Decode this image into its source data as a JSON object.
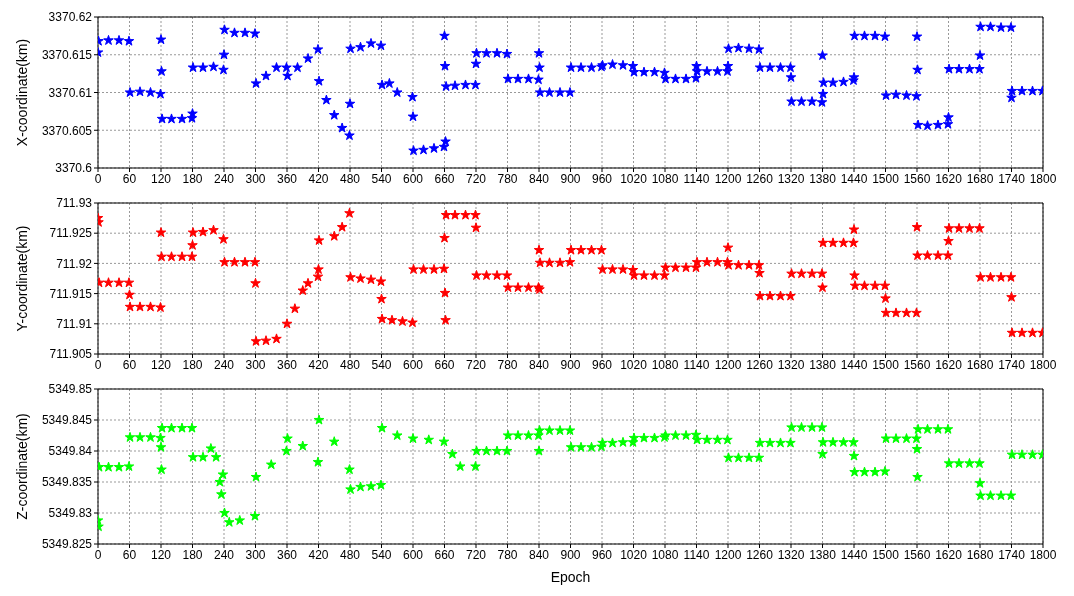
{
  "chart_data": [
    {
      "type": "scatter",
      "ylabel": "X-coordinate(km)",
      "color": "#0000ff",
      "marker": "star",
      "grid": true,
      "xlim": [
        0,
        1800
      ],
      "xticks": [
        0,
        60,
        120,
        180,
        240,
        300,
        360,
        420,
        480,
        540,
        600,
        660,
        720,
        780,
        840,
        900,
        960,
        1020,
        1080,
        1140,
        1200,
        1260,
        1320,
        1380,
        1440,
        1500,
        1560,
        1620,
        1680,
        1740,
        1800
      ],
      "ylim": [
        3370.6,
        3370.62
      ],
      "yticks": [
        3370.6,
        3370.605,
        3370.61,
        3370.615,
        3370.62
      ],
      "x": [
        0,
        1,
        20,
        40,
        59,
        61,
        80,
        100,
        119,
        120,
        121,
        122,
        140,
        160,
        179,
        180,
        181,
        200,
        220,
        239,
        240,
        241,
        260,
        280,
        299,
        301,
        320,
        340,
        359,
        361,
        380,
        400,
        419,
        421,
        435,
        450,
        465,
        479,
        480,
        481,
        500,
        520,
        539,
        541,
        555,
        570,
        599,
        600,
        601,
        620,
        640,
        659,
        660,
        661,
        662,
        663,
        680,
        700,
        719,
        720,
        721,
        740,
        760,
        779,
        781,
        800,
        820,
        839,
        840,
        841,
        842,
        860,
        880,
        899,
        901,
        920,
        940,
        959,
        961,
        980,
        1000,
        1019,
        1021,
        1040,
        1060,
        1079,
        1081,
        1100,
        1120,
        1139,
        1140,
        1141,
        1160,
        1180,
        1199,
        1200,
        1201,
        1220,
        1240,
        1259,
        1261,
        1280,
        1300,
        1319,
        1320,
        1321,
        1340,
        1360,
        1379,
        1380,
        1381,
        1382,
        1400,
        1420,
        1439,
        1440,
        1441,
        1460,
        1480,
        1499,
        1501,
        1520,
        1540,
        1559,
        1560,
        1561,
        1562,
        1580,
        1600,
        1619,
        1620,
        1621,
        1640,
        1660,
        1679,
        1680,
        1681,
        1700,
        1720,
        1739,
        1740,
        1741,
        1760,
        1780,
        1799
      ],
      "values": [
        3370.6153,
        3370.6168,
        3370.6169,
        3370.6169,
        3370.6168,
        3370.61,
        3370.6101,
        3370.61,
        3370.6098,
        3370.617,
        3370.6128,
        3370.6065,
        3370.6065,
        3370.6065,
        3370.6066,
        3370.6072,
        3370.6133,
        3370.6133,
        3370.6134,
        3370.613,
        3370.615,
        3370.6183,
        3370.6179,
        3370.6179,
        3370.6178,
        3370.6112,
        3370.6122,
        3370.6133,
        3370.6133,
        3370.6122,
        3370.6133,
        3370.6145,
        3370.6157,
        3370.6115,
        3370.609,
        3370.607,
        3370.6053,
        3370.6043,
        3370.6085,
        3370.6158,
        3370.616,
        3370.6165,
        3370.6162,
        3370.611,
        3370.6112,
        3370.61,
        3370.6094,
        3370.6068,
        3370.6023,
        3370.6024,
        3370.6026,
        3370.6028,
        3370.6175,
        3370.6135,
        3370.6035,
        3370.6108,
        3370.6109,
        3370.611,
        3370.611,
        3370.6138,
        3370.6152,
        3370.6152,
        3370.6152,
        3370.6151,
        3370.6118,
        3370.6118,
        3370.6118,
        3370.6117,
        3370.6152,
        3370.6133,
        3370.61,
        3370.61,
        3370.61,
        3370.61,
        3370.6133,
        3370.6133,
        3370.6133,
        3370.6134,
        3370.6136,
        3370.6137,
        3370.6136,
        3370.6135,
        3370.6127,
        3370.6127,
        3370.6127,
        3370.6126,
        3370.6118,
        3370.6118,
        3370.6118,
        3370.6119,
        3370.6135,
        3370.6128,
        3370.6128,
        3370.6128,
        3370.6128,
        3370.6135,
        3370.6158,
        3370.6159,
        3370.6158,
        3370.6157,
        3370.6133,
        3370.6133,
        3370.6133,
        3370.6133,
        3370.612,
        3370.6088,
        3370.6088,
        3370.6088,
        3370.6087,
        3370.6149,
        3370.6098,
        3370.6113,
        3370.6113,
        3370.6114,
        3370.6116,
        3370.612,
        3370.6175,
        3370.6175,
        3370.6175,
        3370.6174,
        3370.6096,
        3370.6097,
        3370.6096,
        3370.6095,
        3370.6174,
        3370.613,
        3370.6057,
        3370.6056,
        3370.6057,
        3370.6058,
        3370.6067,
        3370.6131,
        3370.6131,
        3370.6131,
        3370.6131,
        3370.6149,
        3370.6187,
        3370.6187,
        3370.6186,
        3370.6186,
        3370.6093,
        3370.6102,
        3370.6102,
        3370.6102,
        3370.6102
      ]
    },
    {
      "type": "scatter",
      "ylabel": "Y-coordinate(km)",
      "color": "#ff0000",
      "marker": "star",
      "grid": true,
      "xlim": [
        0,
        1800
      ],
      "xticks": [
        0,
        60,
        120,
        180,
        240,
        300,
        360,
        420,
        480,
        540,
        600,
        660,
        720,
        780,
        840,
        900,
        960,
        1020,
        1080,
        1140,
        1200,
        1260,
        1320,
        1380,
        1440,
        1500,
        1560,
        1620,
        1680,
        1740,
        1800
      ],
      "ylim": [
        711.905,
        711.93
      ],
      "yticks": [
        711.905,
        711.91,
        711.915,
        711.92,
        711.925,
        711.93
      ],
      "x": [
        0,
        1,
        2,
        20,
        40,
        59,
        60,
        61,
        80,
        100,
        119,
        120,
        121,
        140,
        160,
        179,
        180,
        181,
        200,
        220,
        239,
        241,
        260,
        280,
        299,
        300,
        301,
        320,
        340,
        360,
        375,
        390,
        400,
        419,
        420,
        421,
        450,
        465,
        479,
        481,
        500,
        520,
        539,
        540,
        541,
        560,
        580,
        599,
        601,
        620,
        640,
        659,
        660,
        661,
        662,
        663,
        680,
        700,
        719,
        720,
        721,
        740,
        760,
        779,
        781,
        800,
        820,
        839,
        840,
        841,
        842,
        860,
        880,
        899,
        901,
        920,
        940,
        959,
        961,
        980,
        1000,
        1019,
        1021,
        1040,
        1060,
        1079,
        1081,
        1100,
        1120,
        1139,
        1141,
        1160,
        1180,
        1199,
        1200,
        1201,
        1220,
        1240,
        1259,
        1260,
        1261,
        1280,
        1300,
        1319,
        1321,
        1340,
        1360,
        1379,
        1380,
        1381,
        1400,
        1420,
        1439,
        1440,
        1441,
        1442,
        1460,
        1480,
        1499,
        1500,
        1501,
        1520,
        1540,
        1559,
        1560,
        1561,
        1580,
        1600,
        1619,
        1620,
        1621,
        1640,
        1660,
        1679,
        1681,
        1700,
        1720,
        1739,
        1740,
        1741,
        1760,
        1780,
        1799
      ],
      "values": [
        711.9275,
        711.9268,
        711.9168,
        711.9168,
        711.9168,
        711.9168,
        711.9148,
        711.9128,
        711.9128,
        711.9128,
        711.9127,
        711.9251,
        711.9211,
        711.9211,
        711.9211,
        711.9211,
        711.923,
        711.9251,
        711.9252,
        711.9255,
        711.924,
        711.9202,
        711.9202,
        711.9202,
        711.9202,
        711.9167,
        711.9071,
        711.9072,
        711.9075,
        711.91,
        711.9125,
        711.9155,
        711.9167,
        711.9178,
        711.919,
        711.9238,
        711.9245,
        711.926,
        711.9283,
        711.9177,
        711.9175,
        711.9173,
        711.917,
        711.9141,
        711.9108,
        711.9106,
        711.9104,
        711.9102,
        711.919,
        711.919,
        711.919,
        711.9191,
        711.9242,
        711.9151,
        711.9106,
        711.928,
        711.928,
        711.928,
        711.928,
        711.9259,
        711.918,
        711.918,
        711.918,
        711.918,
        711.916,
        711.916,
        711.916,
        711.916,
        711.9222,
        711.9157,
        711.9201,
        711.9201,
        711.9201,
        711.9202,
        711.9222,
        711.9222,
        711.9222,
        711.9222,
        711.919,
        711.919,
        711.919,
        711.9189,
        711.918,
        711.918,
        711.918,
        711.918,
        711.9193,
        711.9193,
        711.9193,
        711.9193,
        711.9202,
        711.9202,
        711.9202,
        711.9202,
        711.9226,
        711.9197,
        711.9197,
        711.9197,
        711.9197,
        711.9184,
        711.9146,
        711.9146,
        711.9146,
        711.9146,
        711.9183,
        711.9183,
        711.9183,
        711.9183,
        711.916,
        711.9234,
        711.9234,
        711.9234,
        711.9234,
        711.9256,
        711.918,
        711.9163,
        711.9163,
        711.9163,
        711.9163,
        711.9142,
        711.9118,
        711.9118,
        711.9118,
        711.9118,
        711.926,
        711.9213,
        711.9213,
        711.9213,
        711.9213,
        711.9237,
        711.9258,
        711.9258,
        711.9258,
        711.9258,
        711.9177,
        711.9177,
        711.9177,
        711.9177,
        711.9144,
        711.9085,
        711.9085,
        711.9085,
        711.9085
      ]
    },
    {
      "type": "scatter",
      "xlabel": "Epoch",
      "ylabel": "Z-coordinate(km)",
      "color": "#00ff00",
      "marker": "star",
      "grid": true,
      "xlim": [
        0,
        1800
      ],
      "xticks": [
        0,
        60,
        120,
        180,
        240,
        300,
        360,
        420,
        480,
        540,
        600,
        660,
        720,
        780,
        840,
        900,
        960,
        1020,
        1080,
        1140,
        1200,
        1260,
        1320,
        1380,
        1440,
        1500,
        1560,
        1620,
        1680,
        1740,
        1800
      ],
      "ylim": [
        5349.825,
        5349.85
      ],
      "yticks": [
        5349.825,
        5349.83,
        5349.835,
        5349.84,
        5349.845,
        5349.85
      ],
      "x": [
        0,
        1,
        2,
        20,
        40,
        59,
        61,
        80,
        100,
        119,
        120,
        121,
        122,
        140,
        160,
        179,
        181,
        200,
        215,
        225,
        232,
        235,
        238,
        241,
        250,
        270,
        299,
        301,
        330,
        359,
        361,
        390,
        419,
        421,
        450,
        479,
        481,
        500,
        520,
        539,
        541,
        570,
        600,
        630,
        659,
        675,
        690,
        719,
        721,
        740,
        760,
        779,
        781,
        800,
        820,
        839,
        840,
        841,
        860,
        880,
        899,
        901,
        920,
        940,
        959,
        961,
        980,
        1000,
        1019,
        1021,
        1040,
        1060,
        1079,
        1081,
        1100,
        1120,
        1139,
        1141,
        1160,
        1180,
        1199,
        1201,
        1220,
        1240,
        1259,
        1261,
        1280,
        1300,
        1319,
        1321,
        1340,
        1360,
        1379,
        1380,
        1381,
        1400,
        1420,
        1439,
        1440,
        1441,
        1460,
        1480,
        1499,
        1501,
        1520,
        1540,
        1559,
        1560,
        1561,
        1562,
        1580,
        1600,
        1619,
        1621,
        1640,
        1660,
        1679,
        1680,
        1681,
        1700,
        1720,
        1739,
        1741,
        1760,
        1780,
        1799
      ],
      "values": [
        5349.8288,
        5349.8278,
        5349.8374,
        5349.8374,
        5349.8374,
        5349.8375,
        5349.8422,
        5349.8422,
        5349.8422,
        5349.8421,
        5349.8406,
        5349.837,
        5349.8437,
        5349.8437,
        5349.8437,
        5349.8437,
        5349.839,
        5349.839,
        5349.8404,
        5349.839,
        5349.835,
        5349.833,
        5349.8362,
        5349.83,
        5349.8285,
        5349.8288,
        5349.8295,
        5349.8358,
        5349.8378,
        5349.84,
        5349.842,
        5349.8408,
        5349.8382,
        5349.845,
        5349.8415,
        5349.837,
        5349.8338,
        5349.8342,
        5349.8343,
        5349.8345,
        5349.8437,
        5349.8425,
        5349.842,
        5349.8418,
        5349.8415,
        5349.8395,
        5349.8375,
        5349.8375,
        5349.84,
        5349.84,
        5349.84,
        5349.84,
        5349.8425,
        5349.8425,
        5349.8425,
        5349.8425,
        5349.84,
        5349.8433,
        5349.8433,
        5349.8433,
        5349.8433,
        5349.8406,
        5349.8406,
        5349.8406,
        5349.8407,
        5349.8413,
        5349.8413,
        5349.8414,
        5349.8414,
        5349.8421,
        5349.8421,
        5349.8421,
        5349.8422,
        5349.8425,
        5349.8425,
        5349.8425,
        5349.8426,
        5349.8418,
        5349.8418,
        5349.8418,
        5349.8418,
        5349.8389,
        5349.8389,
        5349.8389,
        5349.8389,
        5349.8413,
        5349.8413,
        5349.8413,
        5349.8413,
        5349.8438,
        5349.8438,
        5349.8438,
        5349.8438,
        5349.8395,
        5349.8414,
        5349.8414,
        5349.8414,
        5349.8414,
        5349.8392,
        5349.8366,
        5349.8366,
        5349.8366,
        5349.8367,
        5349.842,
        5349.842,
        5349.842,
        5349.842,
        5349.8403,
        5349.8358,
        5349.8435,
        5349.8435,
        5349.8435,
        5349.8435,
        5349.838,
        5349.838,
        5349.838,
        5349.838,
        5349.8348,
        5349.8328,
        5349.8328,
        5349.8328,
        5349.8328,
        5349.8394,
        5349.8394,
        5349.8394,
        5349.8394
      ]
    }
  ]
}
